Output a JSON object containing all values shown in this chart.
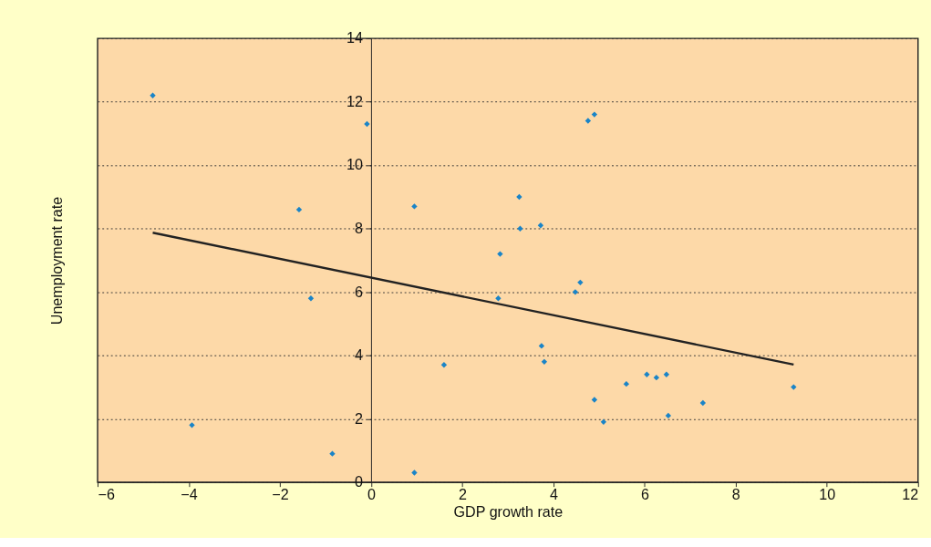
{
  "chart_data": {
    "type": "scatter",
    "xlabel": "GDP growth rate",
    "ylabel": "Unemployment rate",
    "xlim": [
      -6,
      12
    ],
    "ylim": [
      0,
      14
    ],
    "xticks": [
      {
        "value": -6,
        "label": "−6"
      },
      {
        "value": -4,
        "label": "−4"
      },
      {
        "value": -2,
        "label": "−2"
      },
      0,
      2,
      4,
      6,
      8,
      10,
      12
    ],
    "yticks": [
      0,
      2,
      4,
      6,
      8,
      10,
      12,
      14
    ],
    "grid": "y",
    "marker": "diamond",
    "series": [
      {
        "color": "#1a84c7",
        "x": [
          -4.79,
          -3.93,
          -1.58,
          -1.32,
          -0.85,
          -0.09,
          0.95,
          0.95,
          1.6,
          2.79,
          2.83,
          3.25,
          3.27,
          3.72,
          3.74,
          3.8,
          4.48,
          4.59,
          4.76,
          4.9,
          4.9,
          5.1,
          5.6,
          6.05,
          6.26,
          6.48,
          6.52,
          7.28,
          9.27
        ],
        "values": [
          12.2,
          1.8,
          8.6,
          5.8,
          0.9,
          11.3,
          8.7,
          0.3,
          3.7,
          5.8,
          7.2,
          9.0,
          8.0,
          8.1,
          4.3,
          3.8,
          6.0,
          6.3,
          11.4,
          11.6,
          2.6,
          1.9,
          3.1,
          3.4,
          3.3,
          3.4,
          2.1,
          2.5,
          3.0
        ]
      },
      {
        "type": "line",
        "marker": "none",
        "line_style": "solid",
        "color": "#222222",
        "x": [
          -4.79,
          9.27
        ],
        "values": [
          7.87,
          3.71
        ]
      }
    ]
  }
}
